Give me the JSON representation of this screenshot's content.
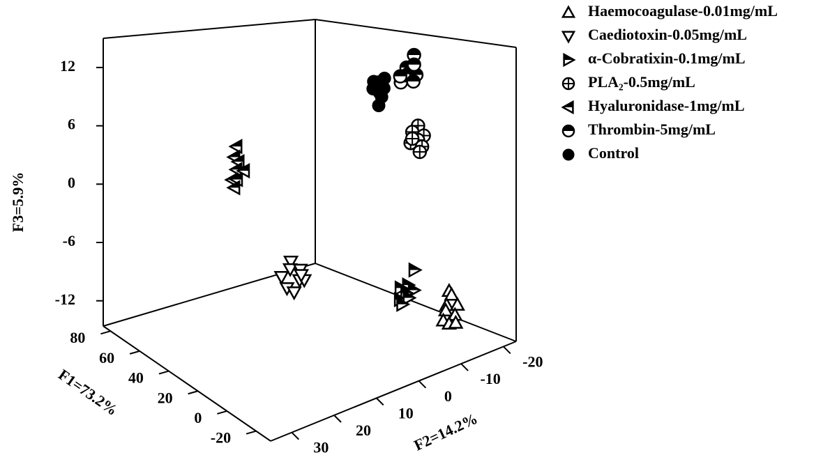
{
  "chart_data": {
    "type": "scatter3d",
    "xlabel": "F1=73.2%",
    "ylabel": "F2=14.2%",
    "zlabel": "F3=5.9%",
    "xlim": [
      -30,
      85
    ],
    "ylim": [
      -23,
      35
    ],
    "zlim": [
      -14.6,
      15
    ],
    "xticks": [
      -20,
      0,
      20,
      40,
      60,
      80
    ],
    "yticks": [
      -20,
      -10,
      0,
      10,
      20,
      30
    ],
    "zticks": [
      -12,
      -6,
      0,
      6,
      12
    ],
    "legend": "upper right",
    "series": [
      {
        "name": "Haemocoagulase-0.01mg/mL",
        "color": "#000000",
        "marker": "triangle-up",
        "x": [
          -13,
          -12,
          -14,
          -13,
          -11,
          -14,
          -12,
          -13,
          -12
        ],
        "y": [
          -14,
          -15,
          -13,
          -16,
          -14,
          -15,
          -13,
          -14,
          -16
        ],
        "z": [
          -9.2,
          -9.8,
          -10.4,
          -10.9,
          -11.3,
          -11.7,
          -12.1,
          -12.5,
          -12.8
        ]
      },
      {
        "name": "Caediotoxin-0.05mg/mL",
        "color": "#000000",
        "marker": "triangle-down",
        "x": [
          34,
          32,
          33,
          35,
          31,
          33,
          34,
          32,
          30
        ],
        "y": [
          6,
          7,
          4,
          8,
          5,
          3,
          7,
          6,
          5
        ],
        "z": [
          -6.8,
          -7.3,
          -7.8,
          -8.2,
          -8.6,
          -9.0,
          -9.4,
          -9.8,
          -8.0
        ]
      },
      {
        "name": "α-Cobratixin-0.1mg/mL",
        "color": "#000000",
        "marker": "triangle-right",
        "x": [
          5,
          4,
          6,
          3,
          5,
          4,
          6,
          5
        ],
        "y": [
          -13,
          -11,
          -10,
          -12,
          -11,
          -9,
          -12,
          -10
        ],
        "z": [
          -8.1,
          -9.3,
          -9.6,
          -9.9,
          -10.2,
          -10.5,
          -10.9,
          -11.2
        ]
      },
      {
        "name": "PLA₂-0.5mg/mL",
        "color": "#000000",
        "marker": "circle-plus",
        "x": [
          10,
          11,
          9,
          10,
          12,
          10,
          9,
          11
        ],
        "y": [
          -16,
          -15,
          -17,
          -16,
          -15,
          -17,
          -16,
          -15
        ],
        "z": [
          6.3,
          5.7,
          5.2,
          4.8,
          4.5,
          4.0,
          3.6,
          5.0
        ]
      },
      {
        "name": "Hyaluronidase-1mg/mL",
        "color": "#000000",
        "marker": "triangle-left",
        "x": [
          68,
          67,
          69,
          68,
          66,
          70,
          67,
          68
        ],
        "y": [
          6,
          7,
          5,
          6,
          8,
          5,
          7,
          4
        ],
        "z": [
          3.0,
          2.0,
          1.2,
          0.5,
          -0.3,
          -0.8,
          -1.3,
          0.2
        ]
      },
      {
        "name": "Thrombin-5mg/mL",
        "color": "#000000",
        "marker": "circle-half",
        "x": [
          10,
          12,
          9,
          11,
          8,
          10,
          13,
          11
        ],
        "y": [
          -15,
          -14,
          -13,
          -16,
          -14,
          -15,
          -13,
          -12
        ],
        "z": [
          13.8,
          12.5,
          12.0,
          11.6,
          11.2,
          12.8,
          11.0,
          11.8
        ]
      },
      {
        "name": "Control",
        "color": "#000000",
        "marker": "circle",
        "x": [
          22,
          24,
          20,
          23,
          21,
          25,
          22,
          19,
          23
        ],
        "y": [
          -10,
          -12,
          -9,
          -13,
          -11,
          -14,
          -12,
          -10,
          -11
        ],
        "z": [
          11.0,
          10.7,
          10.4,
          10.0,
          9.8,
          10.9,
          9.2,
          8.6,
          10.2
        ]
      }
    ]
  }
}
